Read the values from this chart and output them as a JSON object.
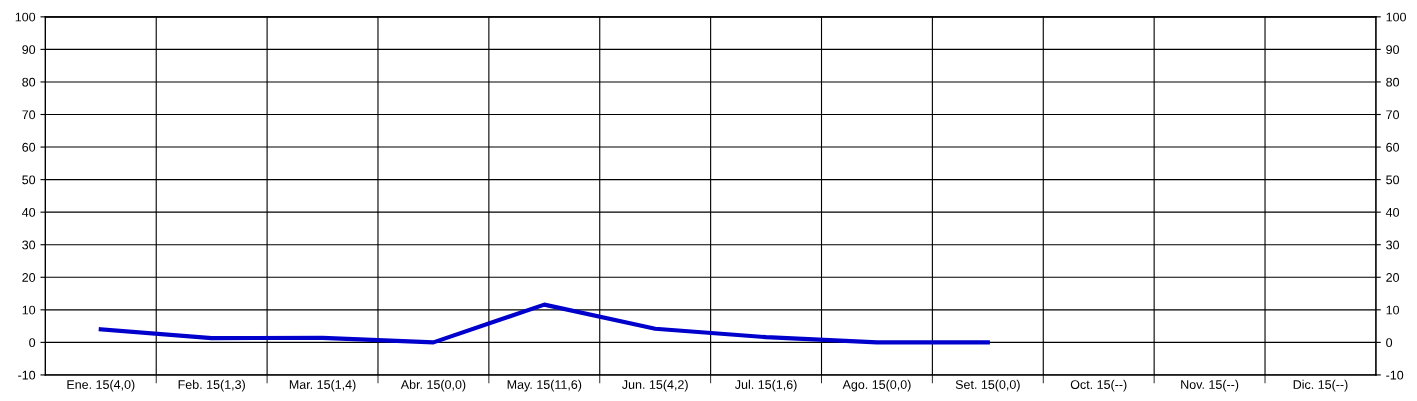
{
  "chart_data": {
    "type": "line",
    "categories": [
      "Ene. 15(4,0)",
      "Feb. 15(1,3)",
      "Mar. 15(1,4)",
      "Abr. 15(0,0)",
      "May. 15(11,6)",
      "Jun. 15(4,2)",
      "Jul. 15(1,6)",
      "Ago. 15(0,0)",
      "Set. 15(0,0)",
      "Oct. 15(--)",
      "Nov. 15(--)",
      "Dic. 15(--)"
    ],
    "series": [
      {
        "color": "#0000cc",
        "values": [
          4.0,
          1.3,
          1.4,
          0.0,
          11.6,
          4.2,
          1.6,
          0.0,
          0.0,
          null,
          null,
          null
        ]
      }
    ],
    "ylim": [
      -10,
      100
    ],
    "yticks": [
      -10,
      0,
      10,
      20,
      30,
      40,
      50,
      60,
      70,
      80,
      90,
      100
    ],
    "y2lim": [
      -10,
      100
    ],
    "y2ticks": [
      -10,
      0,
      10,
      20,
      30,
      40,
      50,
      60,
      70,
      80,
      90,
      100
    ],
    "grid": true,
    "marker": "none",
    "line_style": "solid"
  }
}
